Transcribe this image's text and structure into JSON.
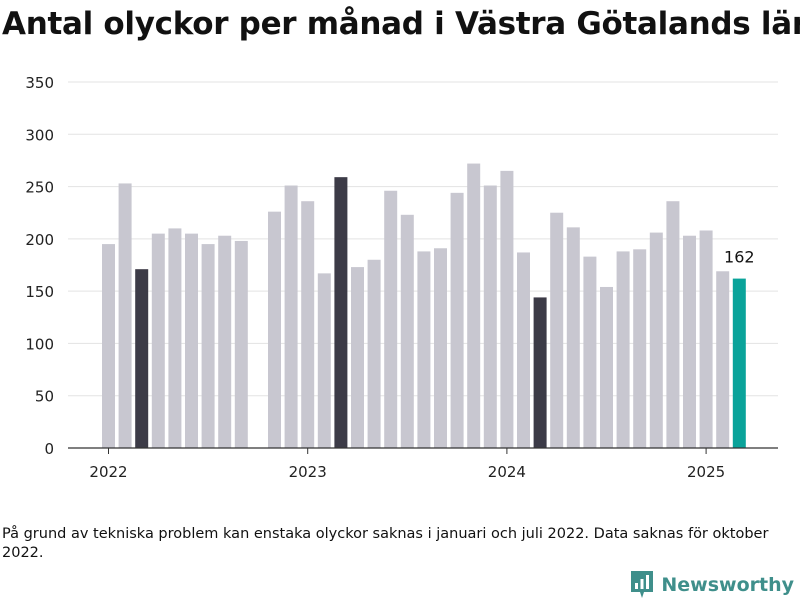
{
  "title": "Antal olyckor per månad i Västra Götalands län",
  "footnote": "På grund av tekniska problem kan enstaka olyckor saknas i januari och juli 2022. Data saknas för oktober 2022.",
  "brand": {
    "name": "Newsworthy",
    "icon": "newsworthy-logo-icon"
  },
  "colors": {
    "default": "#c8c7d0",
    "highlight": "#3c3b47",
    "latest": "#0aa39a",
    "grid": "#e3e3e3",
    "axis": "#333333"
  },
  "chart_data": {
    "type": "bar",
    "title": "Antal olyckor per månad i Västra Götalands län",
    "ylim": [
      0,
      350
    ],
    "yticks": [
      0,
      50,
      100,
      150,
      200,
      250,
      300,
      350
    ],
    "xticks": [
      "2022",
      "2023",
      "2024",
      "2025"
    ],
    "grid": true,
    "categories": [
      "2022-01",
      "2022-02",
      "2022-03",
      "2022-04",
      "2022-05",
      "2022-06",
      "2022-07",
      "2022-08",
      "2022-09",
      "2022-10",
      "2022-11",
      "2022-12",
      "2023-01",
      "2023-02",
      "2023-03",
      "2023-04",
      "2023-05",
      "2023-06",
      "2023-07",
      "2023-08",
      "2023-09",
      "2023-10",
      "2023-11",
      "2023-12",
      "2024-01",
      "2024-02",
      "2024-03",
      "2024-04",
      "2024-05",
      "2024-06",
      "2024-07",
      "2024-08",
      "2024-09",
      "2024-10",
      "2024-11",
      "2024-12",
      "2025-01",
      "2025-02",
      "2025-03"
    ],
    "values": [
      195,
      253,
      171,
      205,
      210,
      205,
      195,
      203,
      198,
      null,
      226,
      251,
      236,
      167,
      259,
      173,
      180,
      246,
      223,
      188,
      191,
      244,
      272,
      251,
      265,
      187,
      144,
      225,
      211,
      183,
      154,
      188,
      190,
      206,
      236,
      203,
      208,
      169,
      162
    ],
    "highlight": [
      "2022-03",
      "2023-03",
      "2024-03"
    ],
    "latest": "2025-03",
    "annotations": [
      {
        "category": "2025-03",
        "text": "162"
      }
    ]
  }
}
